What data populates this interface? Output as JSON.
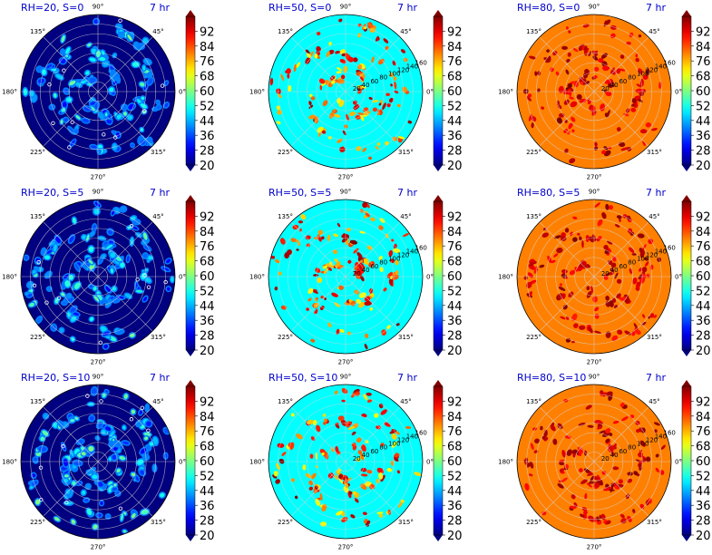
{
  "figure": {
    "time_label": "7 hr",
    "angle_ticks": [
      "0°",
      "45°",
      "90°",
      "135°",
      "180°",
      "225°",
      "270°",
      "315°"
    ],
    "radial_ticks": [
      "20",
      "40",
      "60",
      "80",
      "100",
      "120",
      "140",
      "160"
    ],
    "colorbar_ticks": [
      "20",
      "28",
      "36",
      "44",
      "52",
      "60",
      "68",
      "76",
      "84",
      "92"
    ],
    "colorbar_range": [
      20,
      100
    ],
    "colormap": "jet",
    "colorbar_extend": "both"
  },
  "chart_data": [
    {
      "type": "heatmap",
      "projection": "polar",
      "title": "RH=20, S=0",
      "annotation": "7 hr",
      "rh": 20,
      "s": 0,
      "background_value": 20,
      "spot_values_approx": [
        28,
        60
      ],
      "rlim": [
        0,
        160
      ],
      "grid": true,
      "show_radial_ticks": false
    },
    {
      "type": "heatmap",
      "projection": "polar",
      "title": "RH=50, S=0",
      "annotation": "7 hr",
      "rh": 50,
      "s": 0,
      "background_value": 50,
      "spot_values_approx": [
        68,
        100
      ],
      "rlim": [
        0,
        160
      ],
      "grid": true,
      "show_radial_ticks": true
    },
    {
      "type": "heatmap",
      "projection": "polar",
      "title": "RH=80, S=0",
      "annotation": "7 hr",
      "rh": 80,
      "s": 0,
      "background_value": 80,
      "spot_values_approx": [
        88,
        100
      ],
      "rlim": [
        0,
        160
      ],
      "grid": true,
      "show_radial_ticks": true
    },
    {
      "type": "heatmap",
      "projection": "polar",
      "title": "RH=20, S=5",
      "annotation": "7 hr",
      "rh": 20,
      "s": 5,
      "background_value": 20,
      "spot_values_approx": [
        28,
        60
      ],
      "rlim": [
        0,
        160
      ],
      "grid": true,
      "show_radial_ticks": false
    },
    {
      "type": "heatmap",
      "projection": "polar",
      "title": "RH=50, S=5",
      "annotation": "7 hr",
      "rh": 50,
      "s": 5,
      "background_value": 50,
      "spot_values_approx": [
        68,
        100
      ],
      "rlim": [
        0,
        160
      ],
      "grid": true,
      "show_radial_ticks": true
    },
    {
      "type": "heatmap",
      "projection": "polar",
      "title": "RH=80, S=5",
      "annotation": "7 hr",
      "rh": 80,
      "s": 5,
      "background_value": 80,
      "spot_values_approx": [
        88,
        100
      ],
      "rlim": [
        0,
        160
      ],
      "grid": true,
      "show_radial_ticks": true
    },
    {
      "type": "heatmap",
      "projection": "polar",
      "title": "RH=20, S=10",
      "annotation": "7 hr",
      "rh": 20,
      "s": 10,
      "background_value": 20,
      "spot_values_approx": [
        28,
        60
      ],
      "rlim": [
        0,
        160
      ],
      "grid": true,
      "show_radial_ticks": false
    },
    {
      "type": "heatmap",
      "projection": "polar",
      "title": "RH=50, S=10",
      "annotation": "7 hr",
      "rh": 50,
      "s": 10,
      "background_value": 50,
      "spot_values_approx": [
        68,
        100
      ],
      "rlim": [
        0,
        160
      ],
      "grid": true,
      "show_radial_ticks": true
    },
    {
      "type": "heatmap",
      "projection": "polar",
      "title": "RH=80, S=10",
      "annotation": "7 hr",
      "rh": 80,
      "s": 10,
      "background_value": 80,
      "spot_values_approx": [
        88,
        100
      ],
      "rlim": [
        0,
        160
      ],
      "grid": true,
      "show_radial_ticks": true
    }
  ]
}
